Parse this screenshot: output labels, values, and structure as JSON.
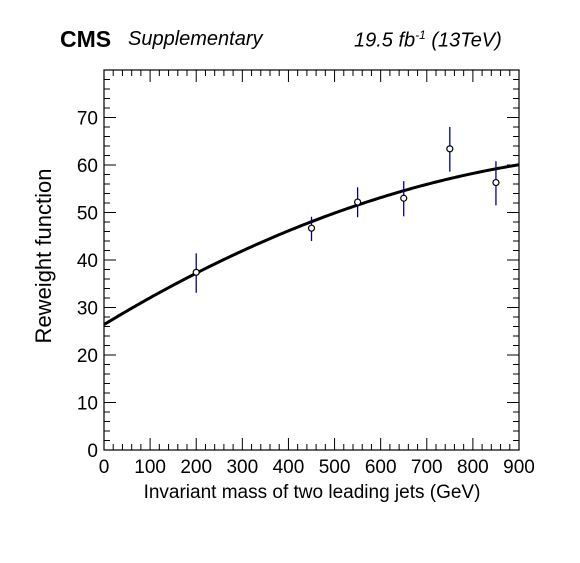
{
  "header": {
    "experiment": "CMS",
    "tag": "Supplementary",
    "lumi_prefix": "19.5 fb",
    "lumi_exp": "-1",
    "lumi_suffix": " (13TeV)"
  },
  "chart_data": {
    "type": "scatter",
    "xlabel": "Invariant mass of two leading jets (GeV)",
    "ylabel": "Reweight function",
    "xlim": [
      0,
      900
    ],
    "ylim": [
      0,
      80
    ],
    "xticks": [
      0,
      100,
      200,
      300,
      400,
      500,
      600,
      700,
      800,
      900
    ],
    "yticks": [
      0,
      10,
      20,
      30,
      40,
      50,
      60,
      70
    ],
    "grid": false,
    "points": [
      {
        "x": 200,
        "y": 37.4,
        "err_low": 4.3,
        "err_high": 4.0
      },
      {
        "x": 450,
        "y": 46.7,
        "err_low": 2.7,
        "err_high": 2.4
      },
      {
        "x": 550,
        "y": 52.2,
        "err_low": 3.2,
        "err_high": 3.1
      },
      {
        "x": 650,
        "y": 53.0,
        "err_low": 3.8,
        "err_high": 3.6
      },
      {
        "x": 750,
        "y": 63.4,
        "err_low": 4.8,
        "err_high": 4.6
      },
      {
        "x": 850,
        "y": 56.3,
        "err_low": 4.8,
        "err_high": 4.5
      }
    ],
    "fit": {
      "form": "quadratic",
      "coefficients": [
        26.4,
        0.0589,
        -2.39e-05
      ],
      "color": "#000000"
    },
    "marker_color": "#000000",
    "errorbar_color": "#00008b"
  }
}
